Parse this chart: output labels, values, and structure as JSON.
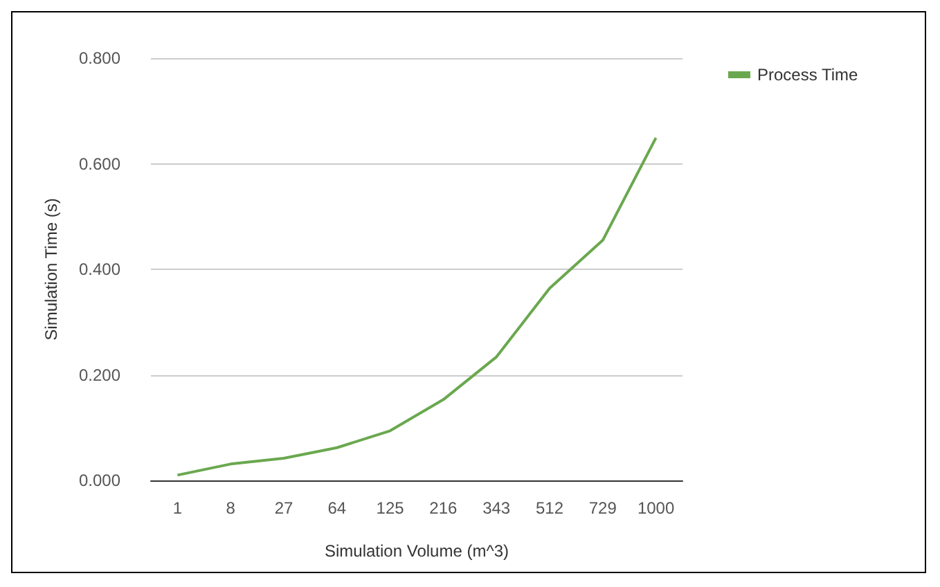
{
  "chart_data": {
    "type": "line",
    "xlabel": "Simulation Volume (m^3)",
    "ylabel": "Simulation Time (s)",
    "categories": [
      "1",
      "8",
      "27",
      "64",
      "125",
      "216",
      "343",
      "512",
      "729",
      "1000"
    ],
    "series": [
      {
        "name": "Process Time",
        "color": "#6aa84f",
        "values": [
          0.01,
          0.031,
          0.042,
          0.062,
          0.094,
          0.153,
          0.234,
          0.364,
          0.455,
          0.649
        ]
      }
    ],
    "ylim": [
      0,
      0.8
    ],
    "yticks": [
      {
        "value": 0,
        "label": "0.000"
      },
      {
        "value": 0.2,
        "label": "0.200"
      },
      {
        "value": 0.4,
        "label": "0.400"
      },
      {
        "value": 0.6,
        "label": "0.600"
      },
      {
        "value": 0.8,
        "label": "0.800"
      }
    ],
    "grid": "y",
    "legend": "top right",
    "marker": "none",
    "line_style": "solid"
  }
}
